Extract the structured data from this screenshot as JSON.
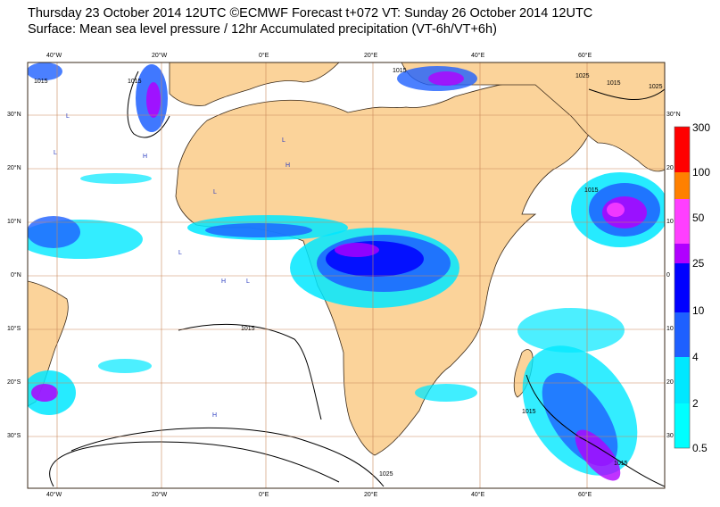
{
  "header": {
    "line1": "Thursday 23 October 2014 12UTC ©ECMWF Forecast t+072 VT: Sunday 26 October 2014 12UTC",
    "line2": "Surface: Mean sea level pressure / 12hr Accumulated precipitation (VT-6h/VT+6h)"
  },
  "map": {
    "lon_labels_top": [
      "40°W",
      "20°W",
      "0°E",
      "20°E",
      "40°E",
      "60°E"
    ],
    "lon_labels_bottom": [
      "40°W",
      "20°W",
      "0°E",
      "20°E",
      "40°E",
      "60°E"
    ],
    "lat_labels_left": [
      "30°N",
      "20°N",
      "10°N",
      "0°N",
      "10°S",
      "20°S",
      "30°S"
    ],
    "lat_labels_right": [
      "30°N",
      "20",
      "10",
      "0",
      "10",
      "20",
      "30"
    ],
    "isobar_labels": [
      "1015",
      "1015",
      "1015",
      "1025",
      "1015",
      "1025",
      "1015",
      "1015",
      "1015",
      "1025",
      "1015"
    ],
    "pressure_markers": [
      "L",
      "H",
      "L",
      "L",
      "H",
      "L",
      "L",
      "L",
      "H",
      "H"
    ]
  },
  "legend": {
    "levels": [
      "300",
      "100",
      "50",
      "25",
      "10",
      "4",
      "2",
      "0.5"
    ],
    "colors": [
      "#ff0000",
      "#ff8000",
      "#ff3fff",
      "#b000ff",
      "#0000ff",
      "#1e60ff",
      "#00ffff",
      "#ffffff"
    ]
  },
  "colors": {
    "land": "#fbd39a",
    "ocean": "#ffffff",
    "grid": "#c9885a",
    "coast": "#3a2a1a"
  }
}
